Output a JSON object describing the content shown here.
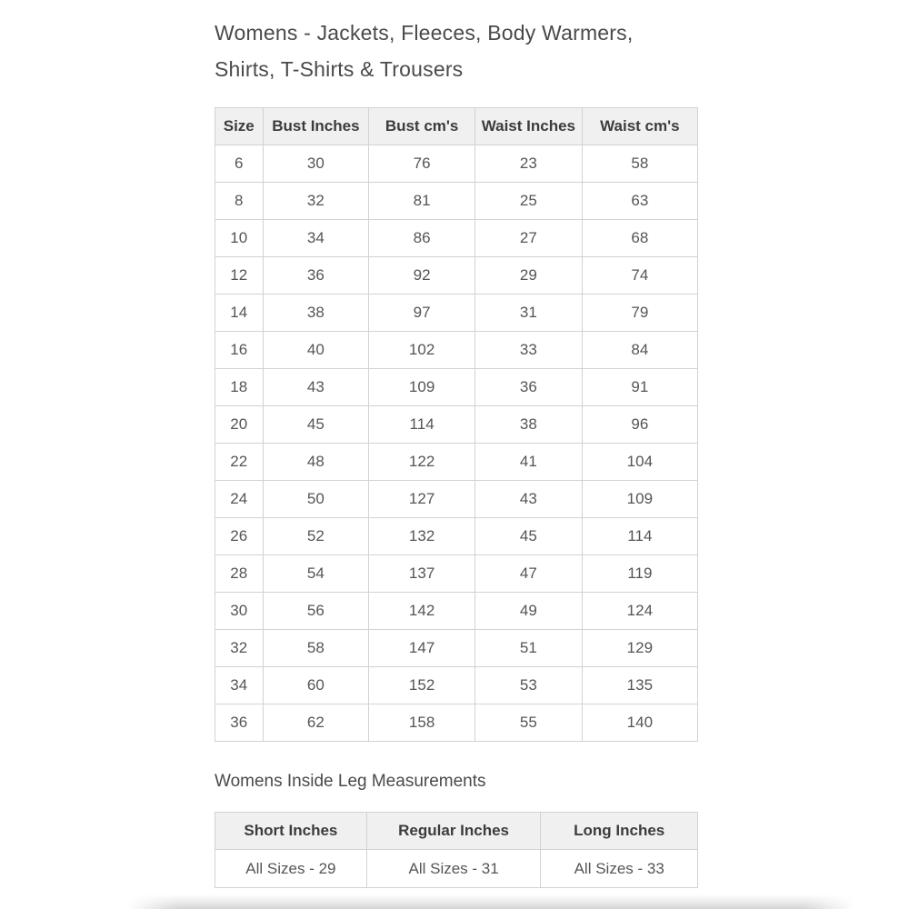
{
  "page": {
    "title_line1": "Womens - Jackets, Fleeces, Body Warmers,",
    "title_line2": "Shirts, T-Shirts & Trousers",
    "subtitle": "Womens Inside Leg Measurements"
  },
  "size_table": {
    "headers": [
      "Size",
      "Bust Inches",
      "Bust cm's",
      "Waist Inches",
      "Waist cm's"
    ],
    "rows": [
      [
        "6",
        "30",
        "76",
        "23",
        "58"
      ],
      [
        "8",
        "32",
        "81",
        "25",
        "63"
      ],
      [
        "10",
        "34",
        "86",
        "27",
        "68"
      ],
      [
        "12",
        "36",
        "92",
        "29",
        "74"
      ],
      [
        "14",
        "38",
        "97",
        "31",
        "79"
      ],
      [
        "16",
        "40",
        "102",
        "33",
        "84"
      ],
      [
        "18",
        "43",
        "109",
        "36",
        "91"
      ],
      [
        "20",
        "45",
        "114",
        "38",
        "96"
      ],
      [
        "22",
        "48",
        "122",
        "41",
        "104"
      ],
      [
        "24",
        "50",
        "127",
        "43",
        "109"
      ],
      [
        "26",
        "52",
        "132",
        "45",
        "114"
      ],
      [
        "28",
        "54",
        "137",
        "47",
        "119"
      ],
      [
        "30",
        "56",
        "142",
        "49",
        "124"
      ],
      [
        "32",
        "58",
        "147",
        "51",
        "129"
      ],
      [
        "34",
        "60",
        "152",
        "53",
        "135"
      ],
      [
        "36",
        "62",
        "158",
        "55",
        "140"
      ]
    ]
  },
  "inside_leg_table": {
    "headers": [
      "Short Inches",
      "Regular Inches",
      "Long Inches"
    ],
    "rows": [
      [
        "All Sizes - 29",
        "All Sizes - 31",
        "All Sizes - 33"
      ]
    ]
  },
  "colors": {
    "header_bg": "#f0f0f0",
    "border": "#d2d2d2",
    "title_text": "#4a4a4a",
    "header_text": "#3c3c3c",
    "cell_text": "#555555"
  }
}
